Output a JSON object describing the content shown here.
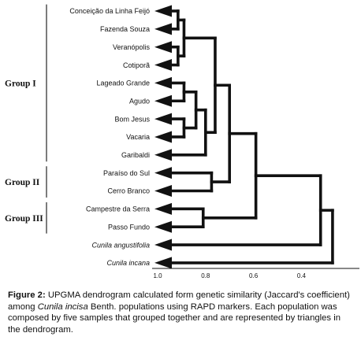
{
  "taxa": [
    {
      "label": "Conceição da Linha Feijó",
      "italic": false
    },
    {
      "label": "Fazenda Souza",
      "italic": false
    },
    {
      "label": "Veranópolis",
      "italic": false
    },
    {
      "label": "Cotiporã",
      "italic": false
    },
    {
      "label": "Lageado Grande",
      "italic": false
    },
    {
      "label": "Agudo",
      "italic": false
    },
    {
      "label": "Bom Jesus",
      "italic": false
    },
    {
      "label": "Vacaria",
      "italic": false
    },
    {
      "label": "Garibaldi",
      "italic": false
    },
    {
      "label": "Paraíso do Sul",
      "italic": false
    },
    {
      "label": "Cerro Branco",
      "italic": false
    },
    {
      "label": "Campestre da Serra",
      "italic": false
    },
    {
      "label": "Passo Fundo",
      "italic": false
    },
    {
      "label": "Cunila angustifolia",
      "italic": true
    },
    {
      "label": "Cunila incana",
      "italic": true
    }
  ],
  "groups": [
    {
      "label": "Group I",
      "first_taxon": 0,
      "last_taxon": 8
    },
    {
      "label": "Group II",
      "first_taxon": 9,
      "last_taxon": 10
    },
    {
      "label": "Group III",
      "first_taxon": 11,
      "last_taxon": 12
    }
  ],
  "similarity_scale": {
    "ticks": [
      {
        "value": 1.0,
        "label": "1.0"
      },
      {
        "value": 0.8,
        "label": "0.8"
      },
      {
        "value": 0.6,
        "label": "0.6"
      },
      {
        "value": 0.4,
        "label": "0.4"
      }
    ]
  },
  "clusters": [
    {
      "id": "c1",
      "children": [
        "t0",
        "t1"
      ],
      "similarity": 0.915
    },
    {
      "id": "c2",
      "children": [
        "t2",
        "t3"
      ],
      "similarity": 0.915
    },
    {
      "id": "c3",
      "children": [
        "c1",
        "c2"
      ],
      "similarity": 0.89
    },
    {
      "id": "c4",
      "children": [
        "t4",
        "t5"
      ],
      "similarity": 0.89
    },
    {
      "id": "c5",
      "children": [
        "t6",
        "t7"
      ],
      "similarity": 0.89
    },
    {
      "id": "c6",
      "children": [
        "c4",
        "c5"
      ],
      "similarity": 0.84
    },
    {
      "id": "c7",
      "children": [
        "c6",
        "t8"
      ],
      "similarity": 0.8
    },
    {
      "id": "c8",
      "children": [
        "c3",
        "c7"
      ],
      "similarity": 0.76
    },
    {
      "id": "c9",
      "children": [
        "t9",
        "t10"
      ],
      "similarity": 0.775
    },
    {
      "id": "c10",
      "children": [
        "c8",
        "c9"
      ],
      "similarity": 0.7
    },
    {
      "id": "c11",
      "children": [
        "t11",
        "t12"
      ],
      "similarity": 0.81
    },
    {
      "id": "c12",
      "children": [
        "c10",
        "c11"
      ],
      "similarity": 0.59
    },
    {
      "id": "c13",
      "children": [
        "c12",
        "t13"
      ],
      "similarity": 0.32
    },
    {
      "id": "c14",
      "children": [
        "c13",
        "t14"
      ],
      "similarity": 0.27
    }
  ],
  "caption": {
    "label": "Figure 2:",
    "before_species": "UPGMA dendrogram calculated form genetic similarity (Jaccard's coefficient) among",
    "species": "Cunila incisa",
    "after_species": "Benth. populations using RAPD markers. Each population was composed by five samples that grouped together and are represented by triangles in the dendrogram."
  },
  "colors": {
    "ink": "#111111",
    "background": "#ffffff"
  }
}
